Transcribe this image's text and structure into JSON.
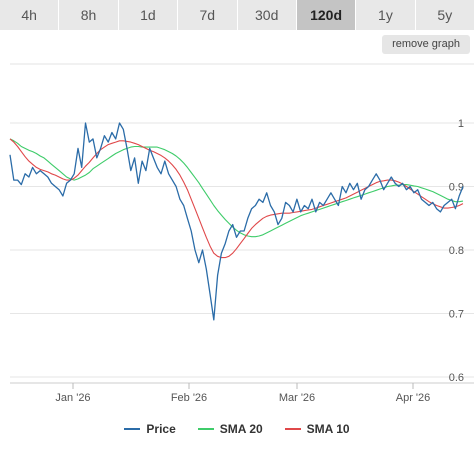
{
  "timeframe_tabs": [
    {
      "label": "4h",
      "active": false
    },
    {
      "label": "8h",
      "active": false
    },
    {
      "label": "1d",
      "active": false
    },
    {
      "label": "7d",
      "active": false
    },
    {
      "label": "30d",
      "active": false
    },
    {
      "label": "120d",
      "active": true
    },
    {
      "label": "1y",
      "active": false
    },
    {
      "label": "5y",
      "active": false
    }
  ],
  "remove_graph_label": "remove graph",
  "chart_data": {
    "type": "line",
    "title": "",
    "xlabel": "",
    "ylabel": "",
    "x_tick_labels": [
      "Jan '26",
      "Feb '26",
      "Mar '26",
      "Apr '26"
    ],
    "y_ticks": [
      0.6,
      0.7,
      0.8,
      0.9,
      1
    ],
    "y_tick_labels": [
      "0.6",
      "0.7",
      "0.8",
      "0.9",
      "1"
    ],
    "ylim": [
      0.6,
      1.03
    ],
    "grid": true,
    "legend": "bottom",
    "series": [
      {
        "name": "Price",
        "color": "#2b6ca8",
        "values": [
          0.95,
          0.91,
          0.91,
          0.903,
          0.92,
          0.915,
          0.93,
          0.92,
          0.925,
          0.92,
          0.915,
          0.905,
          0.9,
          0.895,
          0.885,
          0.905,
          0.91,
          0.92,
          0.96,
          0.93,
          1.0,
          0.97,
          0.975,
          0.945,
          0.96,
          0.98,
          0.97,
          0.985,
          0.975,
          1.0,
          0.99,
          0.96,
          0.925,
          0.945,
          0.905,
          0.94,
          0.925,
          0.96,
          0.945,
          0.93,
          0.92,
          0.94,
          0.92,
          0.91,
          0.9,
          0.88,
          0.87,
          0.85,
          0.83,
          0.8,
          0.78,
          0.8,
          0.77,
          0.73,
          0.69,
          0.76,
          0.795,
          0.81,
          0.83,
          0.84,
          0.82,
          0.83,
          0.83,
          0.85,
          0.865,
          0.87,
          0.88,
          0.875,
          0.89,
          0.87,
          0.86,
          0.84,
          0.85,
          0.875,
          0.87,
          0.86,
          0.88,
          0.86,
          0.87,
          0.865,
          0.88,
          0.86,
          0.875,
          0.87,
          0.88,
          0.89,
          0.88,
          0.87,
          0.9,
          0.89,
          0.905,
          0.895,
          0.905,
          0.88,
          0.895,
          0.9,
          0.91,
          0.92,
          0.91,
          0.895,
          0.905,
          0.915,
          0.905,
          0.9,
          0.905,
          0.895,
          0.9,
          0.89,
          0.895,
          0.88,
          0.875,
          0.87,
          0.875,
          0.865,
          0.86,
          0.87,
          0.875,
          0.88,
          0.865,
          0.885,
          0.9
        ]
      },
      {
        "name": "SMA 20",
        "color": "#3fcc6a",
        "values": [
          0.975,
          0.972,
          0.968,
          0.963,
          0.96,
          0.957,
          0.955,
          0.952,
          0.948,
          0.945,
          0.94,
          0.935,
          0.93,
          0.925,
          0.92,
          0.915,
          0.912,
          0.91,
          0.912,
          0.915,
          0.918,
          0.922,
          0.928,
          0.932,
          0.936,
          0.94,
          0.944,
          0.948,
          0.952,
          0.955,
          0.958,
          0.96,
          0.962,
          0.963,
          0.963,
          0.962,
          0.962,
          0.962,
          0.962,
          0.962,
          0.96,
          0.958,
          0.955,
          0.952,
          0.948,
          0.943,
          0.937,
          0.93,
          0.922,
          0.914,
          0.906,
          0.897,
          0.888,
          0.879,
          0.87,
          0.862,
          0.855,
          0.848,
          0.842,
          0.836,
          0.831,
          0.827,
          0.824,
          0.822,
          0.821,
          0.821,
          0.822,
          0.824,
          0.827,
          0.83,
          0.833,
          0.836,
          0.839,
          0.842,
          0.845,
          0.848,
          0.851,
          0.854,
          0.856,
          0.858,
          0.86,
          0.862,
          0.864,
          0.866,
          0.868,
          0.87,
          0.872,
          0.874,
          0.876,
          0.878,
          0.88,
          0.882,
          0.884,
          0.886,
          0.888,
          0.89,
          0.892,
          0.894,
          0.896,
          0.898,
          0.9,
          0.901,
          0.902,
          0.902,
          0.903,
          0.903,
          0.902,
          0.901,
          0.9,
          0.898,
          0.896,
          0.894,
          0.892,
          0.889,
          0.886,
          0.883,
          0.88,
          0.878,
          0.876,
          0.876,
          0.877
        ]
      },
      {
        "name": "SMA 10",
        "color": "#e0484a",
        "values": [
          0.975,
          0.97,
          0.963,
          0.955,
          0.947,
          0.94,
          0.935,
          0.93,
          0.927,
          0.925,
          0.923,
          0.92,
          0.918,
          0.915,
          0.912,
          0.91,
          0.91,
          0.913,
          0.918,
          0.925,
          0.932,
          0.938,
          0.945,
          0.952,
          0.958,
          0.962,
          0.966,
          0.968,
          0.97,
          0.972,
          0.972,
          0.971,
          0.97,
          0.968,
          0.966,
          0.963,
          0.96,
          0.957,
          0.955,
          0.952,
          0.949,
          0.945,
          0.94,
          0.934,
          0.927,
          0.918,
          0.907,
          0.895,
          0.88,
          0.865,
          0.85,
          0.835,
          0.82,
          0.806,
          0.795,
          0.79,
          0.788,
          0.788,
          0.79,
          0.795,
          0.802,
          0.81,
          0.818,
          0.826,
          0.834,
          0.84,
          0.845,
          0.85,
          0.853,
          0.855,
          0.856,
          0.857,
          0.858,
          0.858,
          0.858,
          0.859,
          0.86,
          0.861,
          0.862,
          0.863,
          0.864,
          0.866,
          0.868,
          0.87,
          0.872,
          0.874,
          0.876,
          0.878,
          0.88,
          0.882,
          0.885,
          0.888,
          0.891,
          0.894,
          0.897,
          0.9,
          0.903,
          0.906,
          0.908,
          0.909,
          0.91,
          0.91,
          0.909,
          0.907,
          0.904,
          0.9,
          0.896,
          0.892,
          0.888,
          0.884,
          0.88,
          0.876,
          0.873,
          0.87,
          0.868,
          0.866,
          0.866,
          0.867,
          0.868,
          0.87,
          0.873
        ]
      }
    ]
  }
}
